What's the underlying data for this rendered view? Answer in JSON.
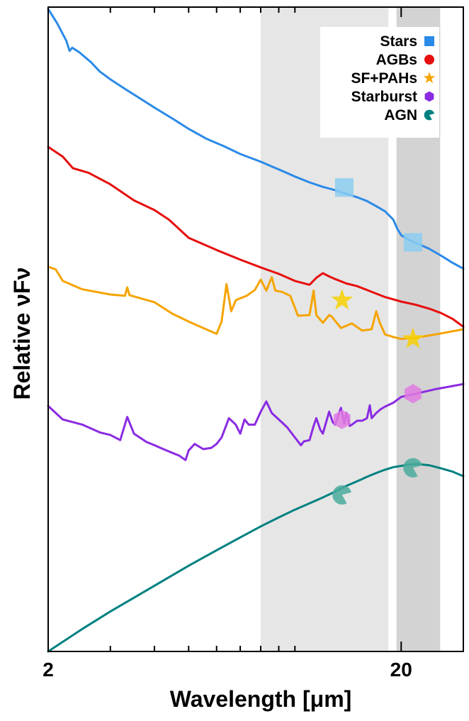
{
  "chart_data": {
    "type": "line",
    "xlabel": "Wavelength [μm]",
    "ylabel": "Relative νFν",
    "x_scale": "log",
    "xlim": [
      2,
      30
    ],
    "x_ticks": [
      {
        "value": 2,
        "label": "2"
      },
      {
        "value": 20,
        "label": "20"
      }
    ],
    "x_minor_ticks": [
      3,
      4,
      5,
      6,
      7,
      8,
      9,
      10,
      30
    ],
    "ylim": [
      0,
      10
    ],
    "y_ticks": "none",
    "grid": false,
    "legend_position": "top-right",
    "shaded_bands": [
      {
        "x0": 8.0,
        "x1": 18.4,
        "color": "#e6e6e6"
      },
      {
        "x0": 19.4,
        "x1": 25.8,
        "color": "#d3d3d3"
      }
    ],
    "series": [
      {
        "name": "Stars",
        "color": "#2b8ae8",
        "marker": "square",
        "marker_color": "#8bcdf0",
        "x": [
          2.0,
          2.12,
          2.25,
          2.3,
          2.34,
          2.45,
          2.65,
          2.8,
          3.0,
          3.3,
          3.6,
          4.0,
          4.5,
          5.0,
          5.6,
          6.3,
          7.0,
          8.0,
          9.0,
          10.0,
          11.0,
          12.0,
          13.0,
          14.0,
          15.0,
          16.0,
          17.0,
          18.0,
          19.0,
          19.5,
          20.0,
          21.0,
          22.0,
          24.0,
          26.0,
          28.0,
          30.0
        ],
        "y": [
          9.97,
          9.75,
          9.48,
          9.32,
          9.37,
          9.3,
          9.14,
          9.0,
          8.88,
          8.73,
          8.6,
          8.44,
          8.27,
          8.11,
          7.96,
          7.84,
          7.72,
          7.6,
          7.48,
          7.37,
          7.28,
          7.21,
          7.16,
          7.1,
          7.05,
          6.99,
          6.91,
          6.83,
          6.7,
          6.56,
          6.46,
          6.39,
          6.34,
          6.25,
          6.14,
          6.03,
          5.94
        ],
        "markers": [
          {
            "x": 13.8,
            "y": 7.2
          },
          {
            "x": 21.6,
            "y": 6.35
          }
        ]
      },
      {
        "name": "AGBs",
        "color": "#e60f0f",
        "marker": "circle",
        "marker_color": "#f47c74",
        "x": [
          2.0,
          2.2,
          2.35,
          2.6,
          3.0,
          3.5,
          4.0,
          4.4,
          5.0,
          6.0,
          7.0,
          8.0,
          9.0,
          10.0,
          11.0,
          11.5,
          12.0,
          12.5,
          13.0,
          14.0,
          15.0,
          16.0,
          18.0,
          20.0,
          22.0,
          24.0,
          26.0,
          28.0,
          30.0
        ],
        "y": [
          7.83,
          7.68,
          7.5,
          7.43,
          7.25,
          7.0,
          6.85,
          6.7,
          6.42,
          6.23,
          6.08,
          5.96,
          5.86,
          5.75,
          5.69,
          5.8,
          5.87,
          5.82,
          5.78,
          5.71,
          5.67,
          5.61,
          5.5,
          5.43,
          5.38,
          5.32,
          5.25,
          5.16,
          5.04
        ]
      },
      {
        "name": "SF+PAHs",
        "color": "#f5a400",
        "marker": "star",
        "marker_color": "#f7d000",
        "x": [
          2.0,
          2.1,
          2.2,
          2.5,
          3.0,
          3.3,
          3.35,
          3.4,
          4.0,
          4.5,
          5.0,
          5.5,
          6.0,
          6.2,
          6.4,
          6.6,
          6.8,
          7.0,
          7.3,
          7.7,
          8.0,
          8.3,
          8.6,
          8.8,
          9.2,
          9.7,
          10.2,
          11.0,
          11.3,
          11.5,
          12.0,
          12.5,
          12.7,
          13.5,
          14.5,
          15.5,
          16.5,
          17.0,
          17.4,
          18.0,
          18.5,
          19.0,
          20.0,
          22.0,
          25.0,
          30.0
        ],
        "y": [
          5.97,
          5.93,
          5.75,
          5.62,
          5.54,
          5.52,
          5.65,
          5.53,
          5.42,
          5.24,
          5.12,
          5.02,
          4.93,
          5.12,
          5.7,
          5.28,
          5.45,
          5.48,
          5.52,
          5.61,
          5.77,
          5.6,
          5.81,
          5.6,
          5.58,
          5.52,
          5.21,
          5.22,
          5.6,
          5.22,
          5.1,
          5.22,
          5.2,
          5.02,
          5.09,
          4.98,
          5.0,
          5.28,
          5.1,
          4.92,
          4.9,
          4.88,
          4.85,
          4.87,
          4.92,
          5.0
        ],
        "markers": [
          {
            "x": 13.6,
            "y": 5.45
          },
          {
            "x": 21.6,
            "y": 4.85
          }
        ]
      },
      {
        "name": "Starburst",
        "color": "#8a2be2",
        "marker": "hexagon",
        "marker_color": "#e07ae0",
        "x": [
          2.0,
          2.2,
          2.5,
          2.8,
          3.0,
          3.2,
          3.35,
          3.5,
          3.8,
          4.0,
          4.2,
          4.5,
          4.7,
          4.9,
          5.0,
          5.2,
          5.5,
          5.8,
          6.0,
          6.2,
          6.5,
          6.8,
          7.0,
          7.2,
          7.4,
          7.7,
          8.0,
          8.3,
          8.6,
          9.0,
          9.5,
          10.0,
          10.4,
          10.6,
          11.0,
          11.3,
          11.5,
          11.8,
          12.0,
          12.5,
          12.8,
          13.0,
          13.5,
          13.8,
          14.0,
          14.3,
          14.5,
          15.0,
          15.5,
          16.0,
          16.3,
          16.5,
          17.0,
          17.5,
          18.0,
          19.0,
          20.0,
          22.0,
          25.0,
          30.0
        ],
        "y": [
          3.81,
          3.6,
          3.52,
          3.4,
          3.36,
          3.28,
          3.64,
          3.38,
          3.25,
          3.2,
          3.15,
          3.08,
          3.04,
          2.97,
          3.12,
          3.22,
          3.14,
          3.16,
          3.22,
          3.32,
          3.62,
          3.52,
          3.38,
          3.6,
          3.52,
          3.52,
          3.72,
          3.88,
          3.7,
          3.6,
          3.48,
          3.32,
          3.2,
          3.26,
          3.28,
          3.5,
          3.62,
          3.44,
          3.38,
          3.72,
          3.56,
          3.52,
          3.78,
          3.54,
          3.7,
          3.5,
          3.52,
          3.58,
          3.58,
          3.62,
          3.82,
          3.62,
          3.7,
          3.76,
          3.8,
          3.86,
          3.95,
          4.0,
          4.07,
          4.15
        ],
        "markers": [
          {
            "x": 13.6,
            "y": 3.6
          },
          {
            "x": 21.6,
            "y": 4.0
          }
        ]
      },
      {
        "name": "AGN",
        "color": "#008080",
        "marker": "pacman",
        "marker_color": "#4aaa9c",
        "x": [
          2.0,
          2.5,
          3.0,
          4.0,
          5.0,
          6.0,
          7.0,
          8.0,
          9.0,
          10.0,
          11.0,
          12.0,
          13.0,
          14.0,
          15.0,
          16.0,
          17.0,
          18.0,
          19.0,
          20.0,
          21.0,
          22.0,
          24.0,
          26.0,
          28.0,
          30.0
        ],
        "y": [
          0.0,
          0.35,
          0.62,
          1.02,
          1.33,
          1.57,
          1.77,
          1.94,
          2.08,
          2.2,
          2.3,
          2.39,
          2.48,
          2.57,
          2.64,
          2.71,
          2.77,
          2.82,
          2.86,
          2.88,
          2.9,
          2.91,
          2.89,
          2.84,
          2.79,
          2.72
        ],
        "markers": [
          {
            "x": 13.6,
            "y": 2.43
          },
          {
            "x": 21.6,
            "y": 2.85
          }
        ]
      }
    ]
  }
}
